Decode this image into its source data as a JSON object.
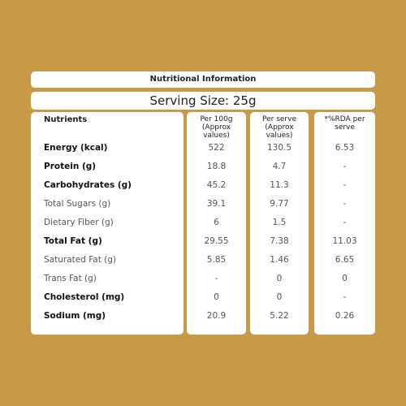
{
  "header": {
    "title": "Nutritional Information",
    "serving_size": "Serving Size: 25g"
  },
  "table": {
    "columns": [
      "Nutrients",
      "Per 100g (Approx values)",
      "Per serve (Approx values)",
      "*%RDA per serve"
    ],
    "rows": [
      {
        "name": "Energy (kcal)",
        "per_100g": "522",
        "per_serve": "130.5",
        "rda": "6.53",
        "bold": true
      },
      {
        "name": "Protein (g)",
        "per_100g": "18.8",
        "per_serve": "4.7",
        "rda": "-",
        "bold": true
      },
      {
        "name": "Carbohydrates (g)",
        "per_100g": "45.2",
        "per_serve": "11.3",
        "rda": "-",
        "bold": true
      },
      {
        "name": "Total Sugars (g)",
        "per_100g": "39.1",
        "per_serve": "9.77",
        "rda": "-",
        "bold": false
      },
      {
        "name": "Dietary Fiber (g)",
        "per_100g": "6",
        "per_serve": "1.5",
        "rda": "-",
        "bold": false
      },
      {
        "name": "Total Fat (g)",
        "per_100g": "29.55",
        "per_serve": "7.38",
        "rda": "11.03",
        "bold": true
      },
      {
        "name": "Saturated Fat (g)",
        "per_100g": "5.85",
        "per_serve": "1.46",
        "rda": "6.65",
        "bold": false
      },
      {
        "name": "Trans Fat (g)",
        "per_100g": "-",
        "per_serve": "0",
        "rda": "0",
        "bold": false
      },
      {
        "name": "Cholesterol (mg)",
        "per_100g": "0",
        "per_serve": "0",
        "rda": "-",
        "bold": true
      },
      {
        "name": "Sodium (mg)",
        "per_100g": "20.9",
        "per_serve": "5.22",
        "rda": "0.26",
        "bold": true
      }
    ]
  }
}
